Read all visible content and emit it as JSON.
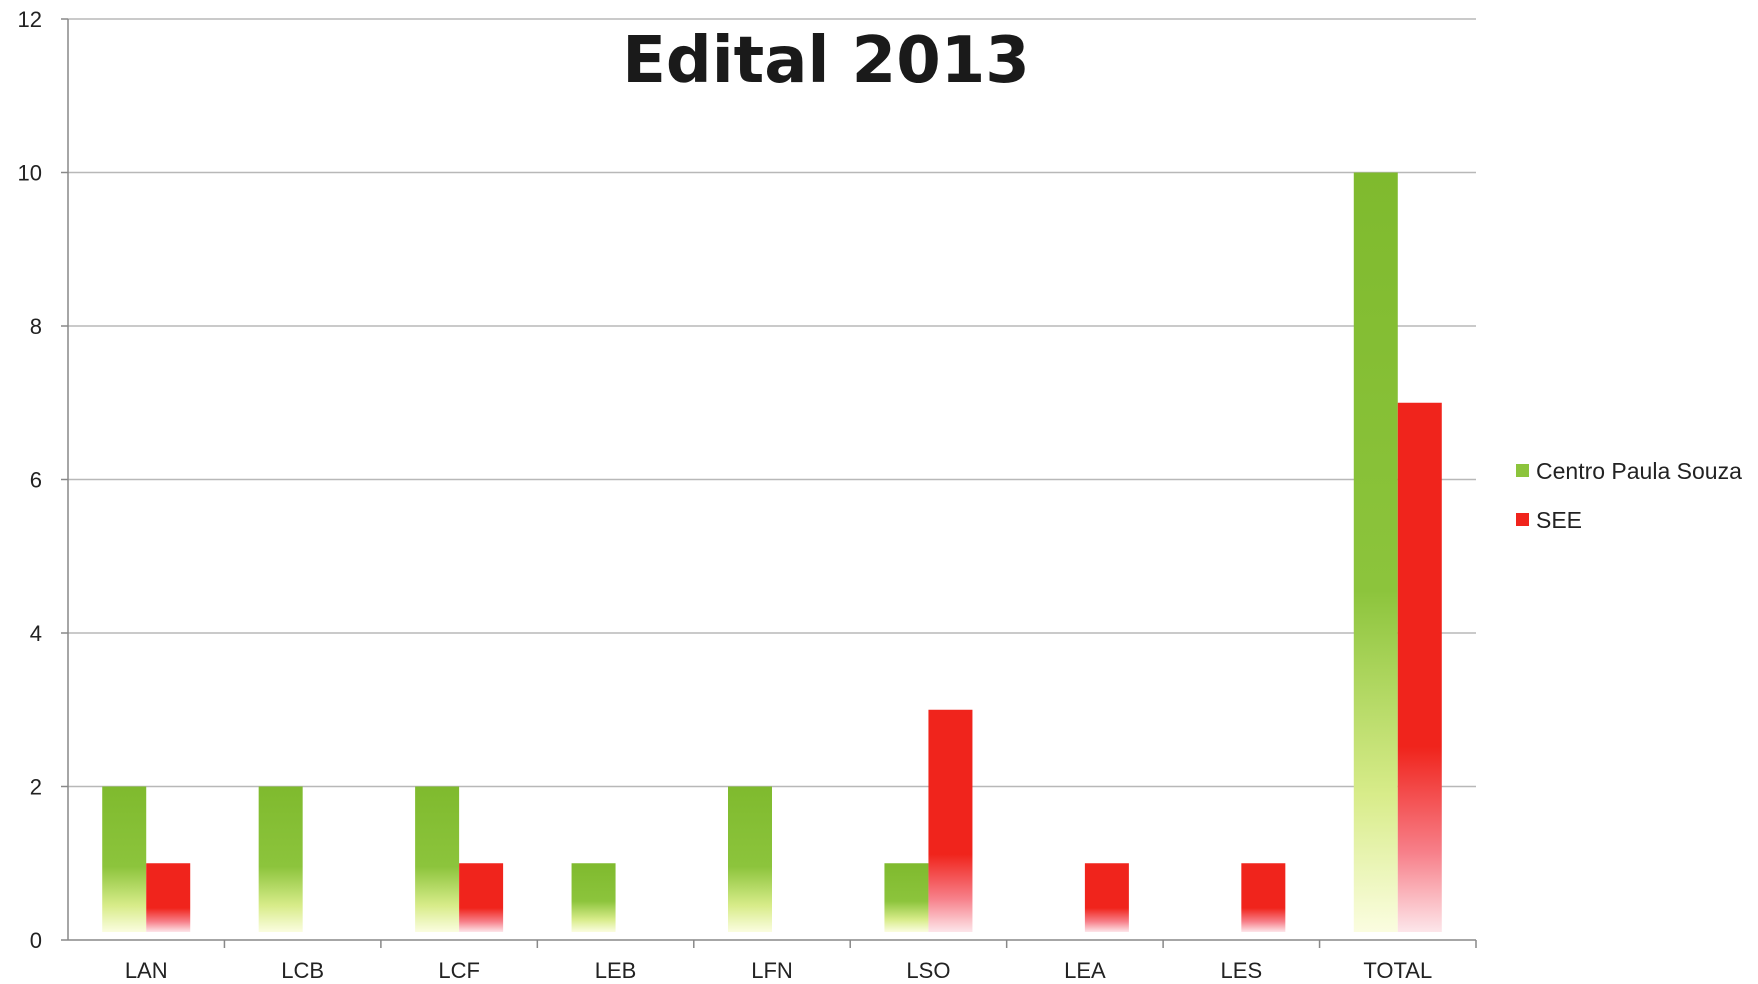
{
  "chart_data": {
    "type": "bar",
    "title": "Edital 2013",
    "xlabel": "",
    "ylabel": "",
    "ylim": [
      0,
      12
    ],
    "yticks": [
      0,
      2,
      4,
      6,
      8,
      10,
      12
    ],
    "grid": true,
    "legend_position": "right",
    "categories": [
      "LAN",
      "LCB",
      "LCF",
      "LEB",
      "LFN",
      "LSO",
      "LEA",
      "LES",
      "TOTAL"
    ],
    "series": [
      {
        "name": "Centro Paula Souza",
        "color": "#8cc43c",
        "values": [
          2,
          2,
          2,
          1,
          2,
          1,
          0,
          0,
          10
        ]
      },
      {
        "name": "SEE",
        "color": "#f0241c",
        "values": [
          1,
          0,
          1,
          0,
          0,
          3,
          1,
          1,
          7
        ]
      }
    ]
  }
}
